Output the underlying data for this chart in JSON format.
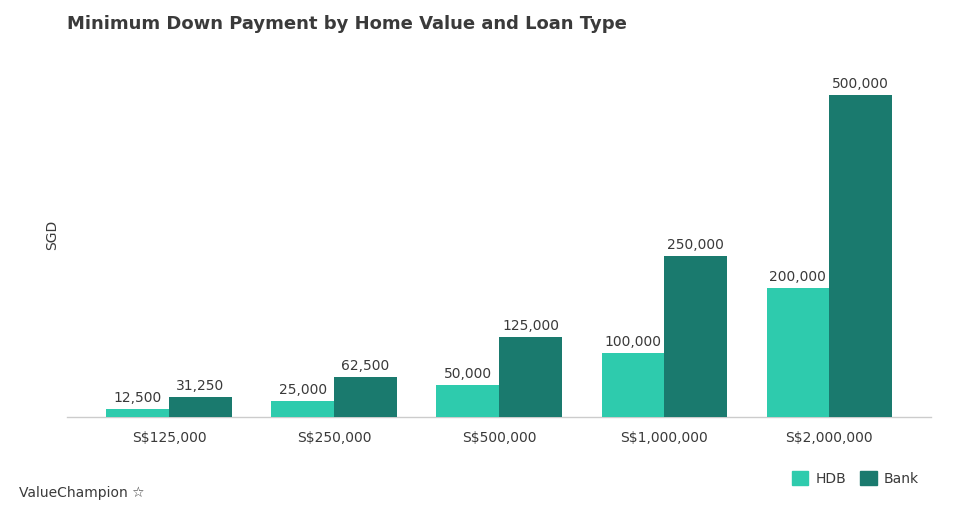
{
  "title": "Minimum Down Payment by Home Value and Loan Type",
  "ylabel": "SGD",
  "categories": [
    "S$125,000",
    "S$250,000",
    "S$500,000",
    "S$1,000,000",
    "S$2,000,000"
  ],
  "hdb_values": [
    12500,
    25000,
    50000,
    100000,
    200000
  ],
  "bank_values": [
    31250,
    62500,
    125000,
    250000,
    500000
  ],
  "hdb_color": "#2ECBAD",
  "bank_color": "#1A7A6E",
  "bar_width": 0.38,
  "ylim": [
    0,
    570000
  ],
  "background_color": "#ffffff",
  "title_fontsize": 13,
  "label_fontsize": 10,
  "tick_fontsize": 10,
  "bar_label_fontsize": 10,
  "legend_labels": [
    "HDB",
    "Bank"
  ],
  "watermark": "ValueChampion",
  "text_color": "#3a3a3a"
}
